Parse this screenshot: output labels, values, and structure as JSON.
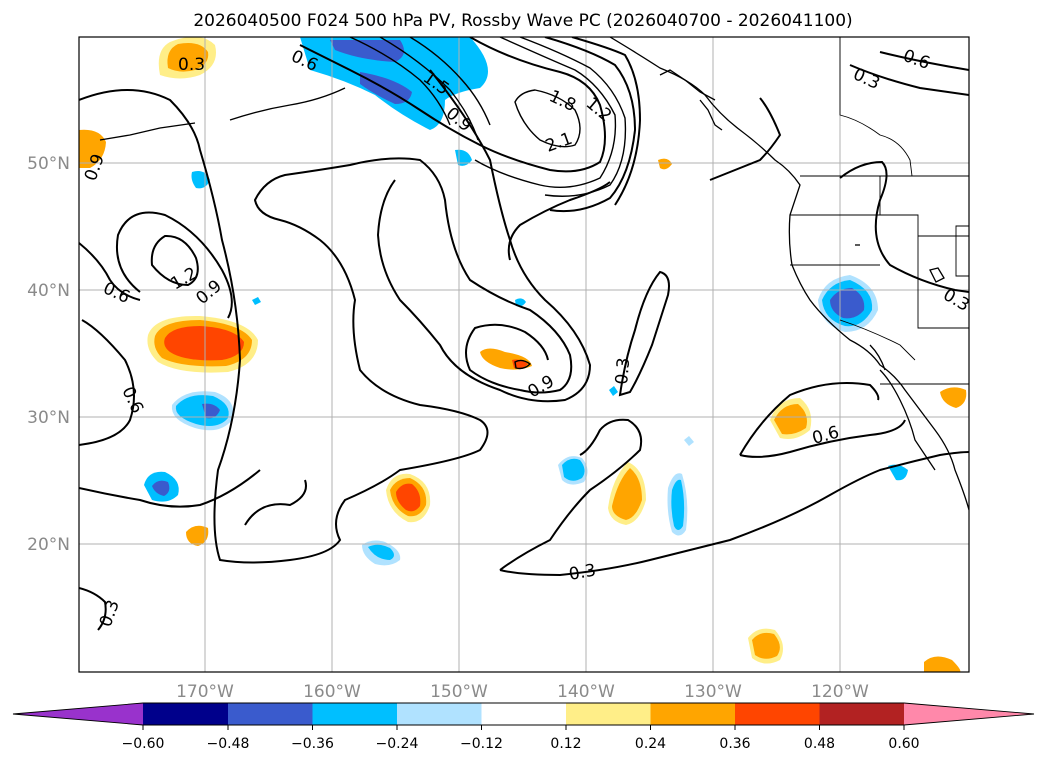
{
  "title": "2026040500 F024 500 hPa PV, Rossby Wave PC (2026040700 - 2026041100)",
  "map": {
    "lat_labels": [
      "50°N",
      "40°N",
      "30°N",
      "20°N"
    ],
    "lon_labels": [
      "170°W",
      "160°W",
      "150°W",
      "140°W",
      "130°W",
      "120°W"
    ]
  },
  "contour_labels": [
    "0.3",
    "0.6",
    "0.9",
    "1.2",
    "1.5",
    "1.8",
    "2.1"
  ],
  "colorbar": {
    "colors": [
      "#9932cc",
      "#00008b",
      "#3a5bcd",
      "#00bfff",
      "#b0e2ff",
      "#ffffff",
      "#ffee88",
      "#ffa500",
      "#ff4500",
      "#b22222",
      "#ff88aa"
    ],
    "ticks": [
      "−0.60",
      "−0.48",
      "−0.36",
      "−0.24",
      "−0.12",
      "0.12",
      "0.24",
      "0.36",
      "0.48",
      "0.60"
    ]
  }
}
